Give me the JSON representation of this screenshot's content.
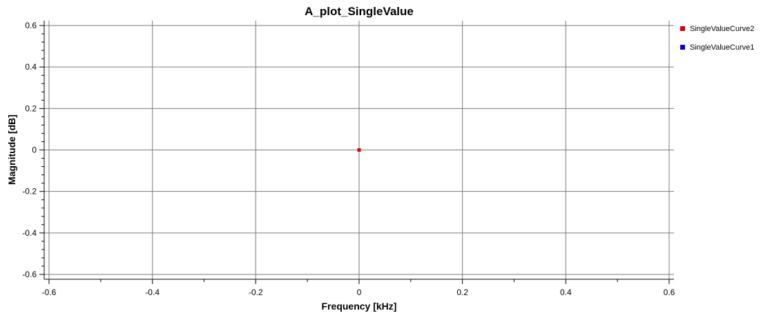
{
  "chart_data": {
    "type": "scatter",
    "title": "A_plot_SingleValue",
    "xlabel": "Frequency [kHz]",
    "ylabel": "Magnitude [dB]",
    "xlim": [
      -0.6,
      0.6
    ],
    "ylim": [
      -0.6,
      0.6
    ],
    "xticks": [
      -0.6,
      -0.4,
      -0.2,
      0,
      0.2,
      0.4,
      0.6
    ],
    "yticks": [
      -0.6,
      -0.4,
      -0.2,
      0,
      0.2,
      0.4,
      0.6
    ],
    "xtick_labels": [
      "-0.6",
      "-0.4",
      "-0.2",
      "0",
      "0.2",
      "0.4",
      "0.6"
    ],
    "ytick_labels": [
      "-0.6",
      "-0.4",
      "-0.2",
      "0",
      "0.2",
      "0.4",
      "0.6"
    ],
    "grid": true,
    "legend_position": "right",
    "series": [
      {
        "name": "SingleValueCurve2",
        "color": "#e00000",
        "points": [
          {
            "x": 0,
            "y": 0
          }
        ]
      },
      {
        "name": "SingleValueCurve1",
        "color": "#0000e0",
        "points": [
          {
            "x": 0,
            "y": 0
          }
        ]
      }
    ]
  }
}
